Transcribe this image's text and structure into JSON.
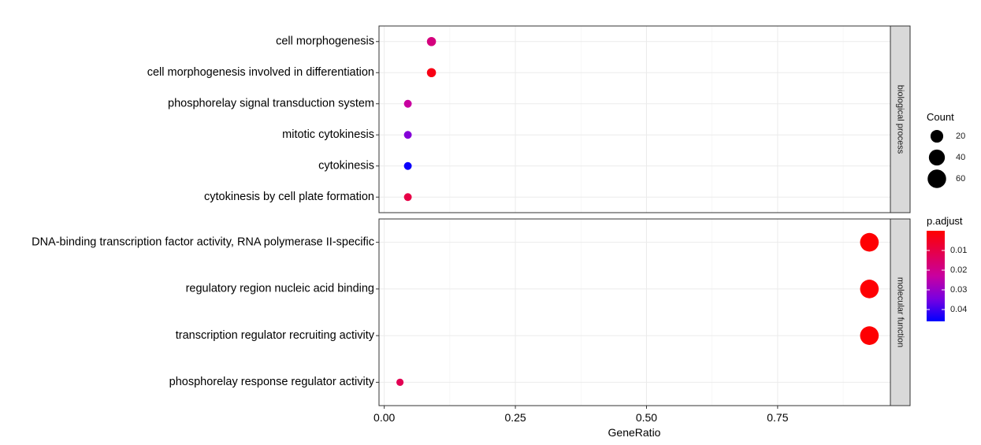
{
  "chart_data": {
    "type": "scatter",
    "subtype": "dot-plot-faceted",
    "xlabel": "GeneRatio",
    "xlim": [
      -0.01,
      0.965
    ],
    "x_ticks": [
      {
        "value": 0.0,
        "label": "0.00"
      },
      {
        "value": 0.25,
        "label": "0.25"
      },
      {
        "value": 0.5,
        "label": "0.50"
      },
      {
        "value": 0.75,
        "label": "0.75"
      }
    ],
    "grid": true,
    "legend_position": "right",
    "size_legend": {
      "title": "Count",
      "entries": [
        {
          "value": 20,
          "label": "20"
        },
        {
          "value": 40,
          "label": "40"
        },
        {
          "value": 60,
          "label": "60"
        }
      ]
    },
    "color_legend": {
      "title": "p.adjust",
      "range": [
        0.0,
        0.046
      ],
      "low_color": "#FF0000",
      "high_color": "#0000FF",
      "ticks": [
        {
          "value": 0.01,
          "label": "0.01"
        },
        {
          "value": 0.02,
          "label": "0.02"
        },
        {
          "value": 0.03,
          "label": "0.03"
        },
        {
          "value": 0.04,
          "label": "0.04"
        }
      ]
    },
    "facets": [
      {
        "strip_label": "biological process",
        "terms": [
          {
            "label": "cell morphogenesis",
            "x": 0.09,
            "count": 6,
            "padj": 0.018
          },
          {
            "label": "cell morphogenesis involved in differentiation",
            "x": 0.09,
            "count": 6,
            "padj": 0.003
          },
          {
            "label": "phosphorelay signal transduction system",
            "x": 0.045,
            "count": 3,
            "padj": 0.023
          },
          {
            "label": "mitotic cytokinesis",
            "x": 0.045,
            "count": 3,
            "padj": 0.033
          },
          {
            "label": "cytokinesis",
            "x": 0.045,
            "count": 3,
            "padj": 0.045
          },
          {
            "label": "cytokinesis by cell plate formation",
            "x": 0.045,
            "count": 3,
            "padj": 0.01
          }
        ]
      },
      {
        "strip_label": "molecular function",
        "terms": [
          {
            "label": "DNA-binding transcription factor activity, RNA polymerase II-specific",
            "x": 0.925,
            "count": 61,
            "padj": 0.0005
          },
          {
            "label": "regulatory region nucleic acid binding",
            "x": 0.925,
            "count": 61,
            "padj": 0.0005
          },
          {
            "label": "transcription regulator recruiting activity",
            "x": 0.925,
            "count": 61,
            "padj": 0.0005
          },
          {
            "label": "phosphorelay response regulator activity",
            "x": 0.03,
            "count": 2,
            "padj": 0.012
          }
        ]
      }
    ]
  }
}
